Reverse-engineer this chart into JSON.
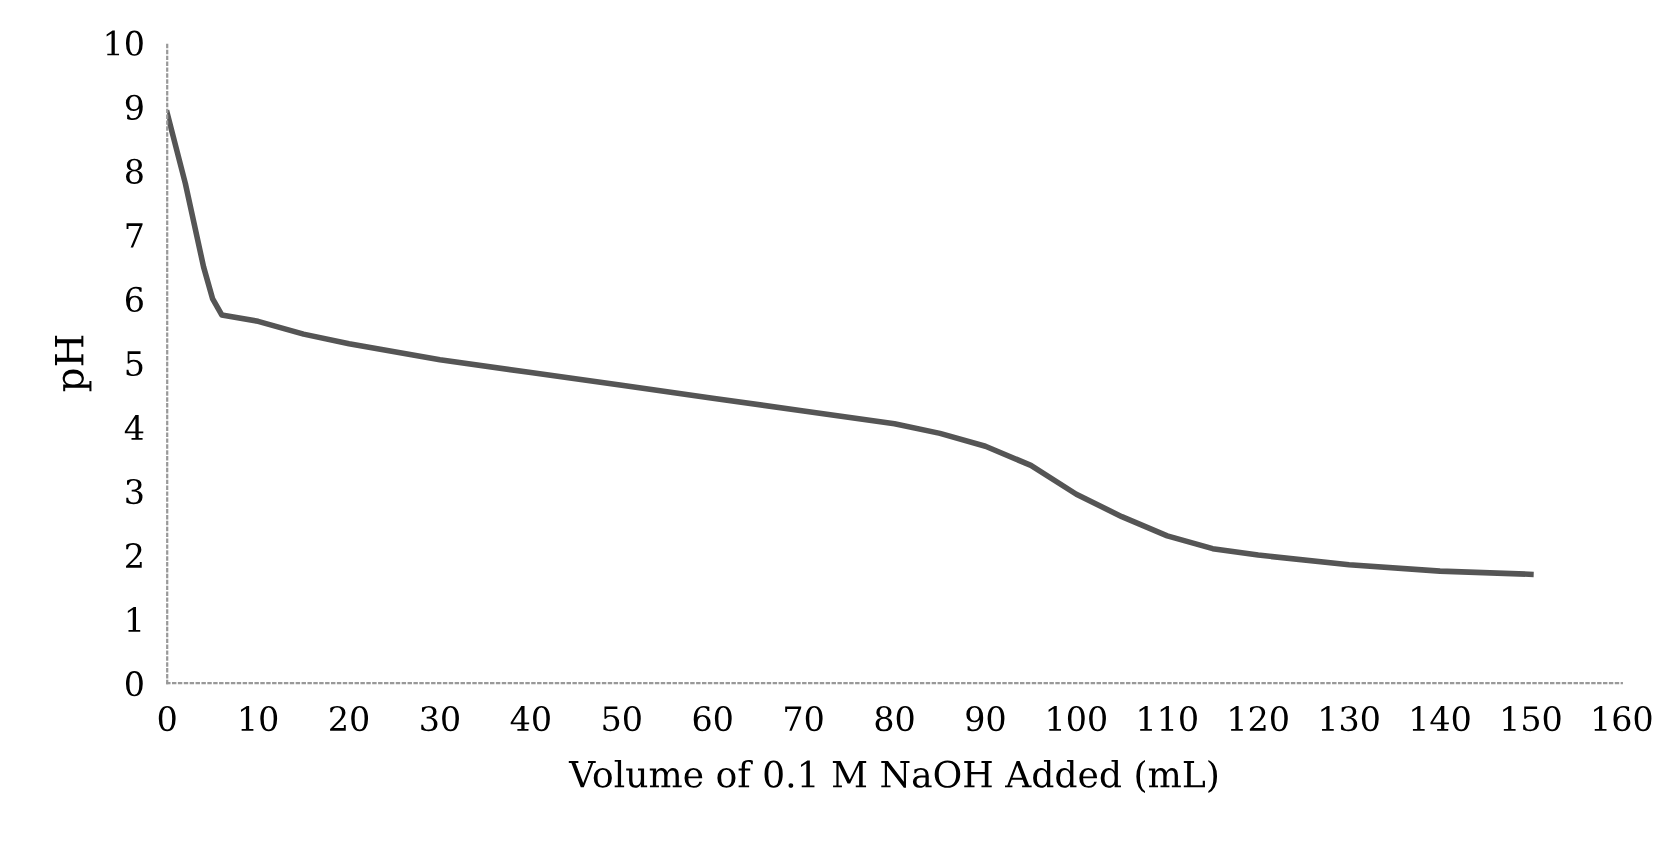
{
  "chart_data": {
    "type": "line",
    "xlabel": "Volume of 0.1 M NaOH Added (mL)",
    "ylabel": "pH",
    "x": [
      0,
      2,
      4,
      5,
      6,
      10,
      15,
      20,
      30,
      40,
      50,
      60,
      70,
      80,
      85,
      90,
      95,
      100,
      105,
      110,
      115,
      120,
      130,
      140,
      150
    ],
    "series": [
      {
        "color": "#555555",
        "values": [
          8.9,
          7.8,
          6.5,
          6.0,
          5.75,
          5.65,
          5.45,
          5.3,
          5.05,
          4.85,
          4.65,
          4.45,
          4.25,
          4.05,
          3.9,
          3.7,
          3.4,
          2.95,
          2.6,
          2.3,
          2.1,
          2.0,
          1.85,
          1.75,
          1.7
        ]
      }
    ],
    "xlim": [
      0,
      160
    ],
    "xticks": [
      0,
      10,
      20,
      30,
      40,
      50,
      60,
      70,
      80,
      90,
      100,
      110,
      120,
      130,
      140,
      150,
      160
    ],
    "ylim": [
      0,
      10
    ],
    "yticks": [
      0,
      1,
      2,
      3,
      4,
      5,
      6,
      7,
      8,
      9,
      10
    ],
    "grid": false,
    "marker": "none",
    "line_style": "solid"
  }
}
